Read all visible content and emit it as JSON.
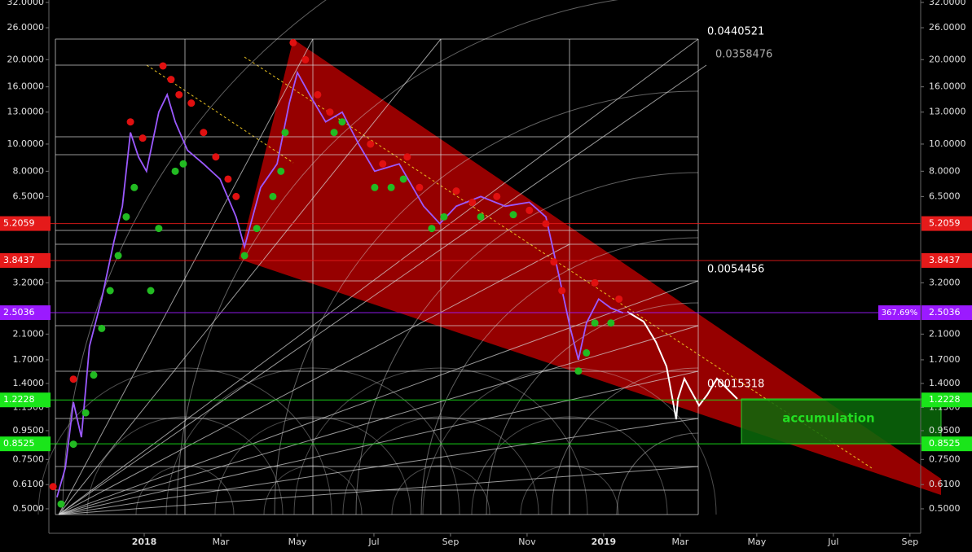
{
  "chart_data": {
    "type": "line",
    "log_scale": true,
    "color": "#9b59ff",
    "x": [
      -2.28,
      -2.06,
      -1.85,
      -1.64,
      -1.43,
      -1.11,
      -0.79,
      -0.57,
      -0.36,
      -0.15,
      0.06,
      0.38,
      0.6,
      0.81,
      1.13,
      1.55,
      1.98,
      2.4,
      2.62,
      3.04,
      3.47,
      3.79,
      4.0,
      4.32,
      4.74,
      5.17,
      5.6,
      6.02,
      6.66,
      7.3,
      7.72,
      8.15,
      8.79,
      9.43,
      10.06,
      10.49,
      10.81,
      11.13,
      11.34,
      11.55,
      11.87,
      12.19,
      12.51
    ],
    "values": [
      0.55,
      0.7,
      1.2,
      0.9,
      1.9,
      2.8,
      4.5,
      6.0,
      11,
      9,
      8,
      13,
      15,
      12,
      9.5,
      8.5,
      7.5,
      5.5,
      4.3,
      7.0,
      8.5,
      14,
      18,
      15,
      12,
      13,
      10,
      8,
      8.5,
      6.0,
      5.2,
      6.0,
      6.5,
      6.0,
      6.2,
      5.5,
      3.5,
      2.2,
      1.7,
      2.3,
      2.8,
      2.6,
      2.5
    ],
    "sar_above": {
      "color": "#e01010",
      "x": [
        -2.38,
        -1.85,
        -0.36,
        -0.04,
        0.49,
        0.7,
        0.91,
        1.23,
        1.55,
        1.87,
        2.19,
        2.4,
        3.89,
        4.21,
        4.53,
        4.85,
        5.91,
        6.23,
        6.87,
        7.19,
        8.15,
        8.57,
        9.21,
        10.06,
        10.49,
        10.7,
        10.91,
        11.77,
        12.4
      ],
      "values": [
        0.6,
        1.45,
        12,
        10.5,
        19,
        17,
        15,
        14,
        11,
        9,
        7.5,
        6.5,
        23,
        20,
        15,
        13,
        10,
        8.5,
        9,
        7,
        6.8,
        6.2,
        6.5,
        5.8,
        5.2,
        3.8,
        3.0,
        3.2,
        2.8
      ]
    },
    "sar_below": {
      "color": "#22bb22",
      "x": [
        -2.17,
        -1.85,
        -1.53,
        -1.32,
        -1.11,
        -0.89,
        -0.68,
        -0.47,
        -0.26,
        0.17,
        0.38,
        0.81,
        1.02,
        2.62,
        2.94,
        3.36,
        3.57,
        3.68,
        4.96,
        5.17,
        6.02,
        6.45,
        6.77,
        7.51,
        7.83,
        8.79,
        9.64,
        11.34,
        11.55,
        11.77,
        12.19
      ],
      "values": [
        0.52,
        0.85,
        1.1,
        1.5,
        2.2,
        3,
        4,
        5.5,
        7,
        3,
        5,
        8,
        8.5,
        4,
        5,
        6.5,
        8,
        11,
        11,
        12,
        7,
        7,
        7.5,
        5,
        5.5,
        5.5,
        5.6,
        1.55,
        1.8,
        2.3,
        2.3
      ]
    },
    "xlim": [
      -2.49,
      20.28
    ],
    "xticks": [
      {
        "value": 0,
        "label": "2018"
      },
      {
        "value": 2,
        "label": "Mar"
      },
      {
        "value": 4,
        "label": "May"
      },
      {
        "value": 6,
        "label": "Jul"
      },
      {
        "value": 8,
        "label": "Sep"
      },
      {
        "value": 10,
        "label": "Nov"
      },
      {
        "value": 12,
        "label": "2019"
      },
      {
        "value": 14,
        "label": "Mar"
      },
      {
        "value": 16,
        "label": "May"
      },
      {
        "value": 18,
        "label": "Jul"
      },
      {
        "value": 20,
        "label": "Sep"
      }
    ],
    "ylim": [
      0.409,
      32.65
    ],
    "yticks": [
      {
        "value": 32,
        "label": "32.0000"
      },
      {
        "value": 26,
        "label": "26.0000"
      },
      {
        "value": 20,
        "label": "20.0000"
      },
      {
        "value": 16,
        "label": "16.0000"
      },
      {
        "value": 13,
        "label": "13.0000"
      },
      {
        "value": 10,
        "label": "10.0000"
      },
      {
        "value": 8,
        "label": "8.0000"
      },
      {
        "value": 6.5,
        "label": "6.5000"
      },
      {
        "value": 3.2,
        "label": "3.2000"
      },
      {
        "value": 2.1,
        "label": "2.1000"
      },
      {
        "value": 1.7,
        "label": "1.7000"
      },
      {
        "value": 1.4,
        "label": "1.4000"
      },
      {
        "value": 1.15,
        "label": "1.1500"
      },
      {
        "value": 0.95,
        "label": "0.9500"
      },
      {
        "value": 0.75,
        "label": "0.7500"
      },
      {
        "value": 0.61,
        "label": "0.6100"
      },
      {
        "value": 0.5,
        "label": "0.5000"
      }
    ],
    "price_lines": [
      {
        "value": 5.2059,
        "color": "#e51a1a"
      },
      {
        "value": 3.8437,
        "color": "#e51a1a"
      },
      {
        "value": 2.5036,
        "color": "#9b1aff"
      },
      {
        "value": 1.2228,
        "color": "#1ae51a"
      },
      {
        "value": 0.8525,
        "color": "#1ae51a"
      }
    ],
    "percent_label": "367.69%",
    "fib_labels": [
      "0.0440521",
      "0.0358476",
      "0.0054456",
      "0.0015318"
    ],
    "annotation": "accumulation"
  }
}
